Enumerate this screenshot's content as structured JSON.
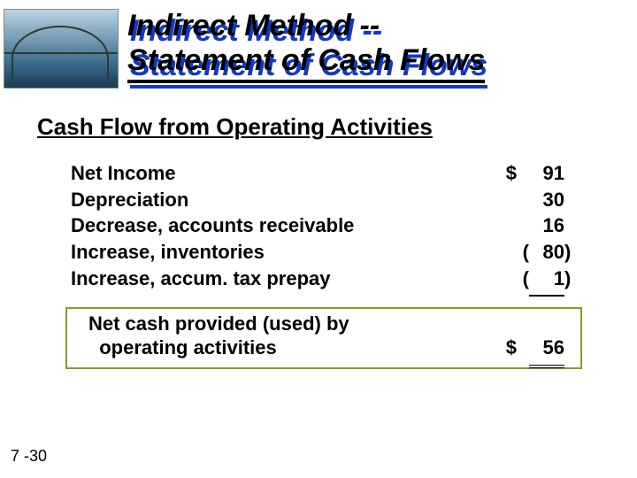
{
  "title_line1": "Indirect Method --",
  "title_line2": "Statement of Cash Flows",
  "section_title": "Cash Flow from Operating Activities",
  "lines": [
    {
      "label": "Net Income",
      "sym": "$",
      "lp": "",
      "num": "91",
      "rp": ""
    },
    {
      "label": "Depreciation",
      "sym": "",
      "lp": "",
      "num": "30",
      "rp": ""
    },
    {
      "label": "Decrease, accounts receivable",
      "sym": "",
      "lp": "",
      "num": "16",
      "rp": ""
    },
    {
      "label": "Increase, inventories",
      "sym": "",
      "lp": "(",
      "num": "80",
      "rp": ")"
    },
    {
      "label": "Increase, accum. tax prepay",
      "sym": "",
      "lp": "(",
      "num": "1",
      "rp": ")"
    }
  ],
  "subtotal": {
    "label_line1": "Net cash provided (used) by",
    "label_line2": "operating activities",
    "sym": "$",
    "num": "56"
  },
  "page_number": "7 -30",
  "colors": {
    "title_shadow": "#1038c8",
    "highlight_border": "#8a9a2a",
    "text": "#000000",
    "background": "#ffffff"
  },
  "typography": {
    "title_fontsize": 34,
    "section_fontsize": 26,
    "body_fontsize": 22,
    "pagenum_fontsize": 18,
    "font_family": "Arial"
  }
}
